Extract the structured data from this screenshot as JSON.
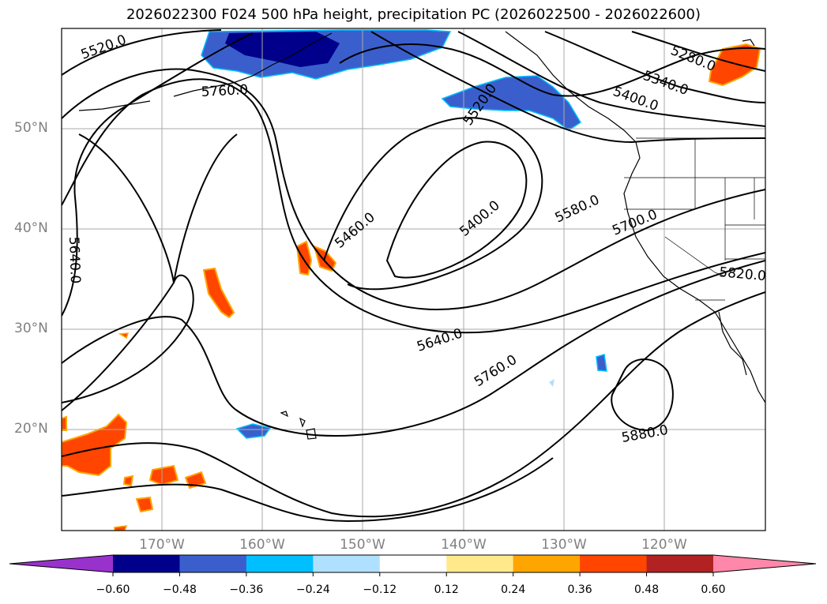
{
  "title": "2026022300 F024 500 hPa height, precipitation PC (2026022500 - 2026022600)",
  "lat_labels": [
    "50°N",
    "40°N",
    "30°N",
    "20°N"
  ],
  "lon_labels": [
    "170°W",
    "160°W",
    "150°W",
    "140°W",
    "130°W",
    "120°W"
  ],
  "contour_labels": [
    "5520.0",
    "5760.0",
    "5640.0",
    "5520.0",
    "5460.0",
    "5400.0",
    "5580.0",
    "5700.0",
    "5640.0",
    "5760.0",
    "5880.0",
    "5280.0",
    "5340.0",
    "5400.0",
    "5820.0"
  ],
  "colorbar": {
    "ticks": [
      "−0.60",
      "−0.48",
      "−0.36",
      "−0.24",
      "−0.12",
      "0.12",
      "0.24",
      "0.36",
      "0.48",
      "0.60"
    ],
    "colors": [
      "#9932cc",
      "#00008b",
      "#3a5fcd",
      "#00bfff",
      "#b0e0ff",
      "#ffffff",
      "#ffe98a",
      "#ffa500",
      "#ff4500",
      "#b22222",
      "#ff88aa"
    ]
  },
  "colors": {
    "precip_negative_strong": "#00008b",
    "precip_negative": "#3a5fcd",
    "precip_negative_light": "#00bfff",
    "precip_positive": "#ff4500",
    "precip_positive_light": "#ffa500",
    "contour": "#000000",
    "grid": "#aaaaaa"
  }
}
